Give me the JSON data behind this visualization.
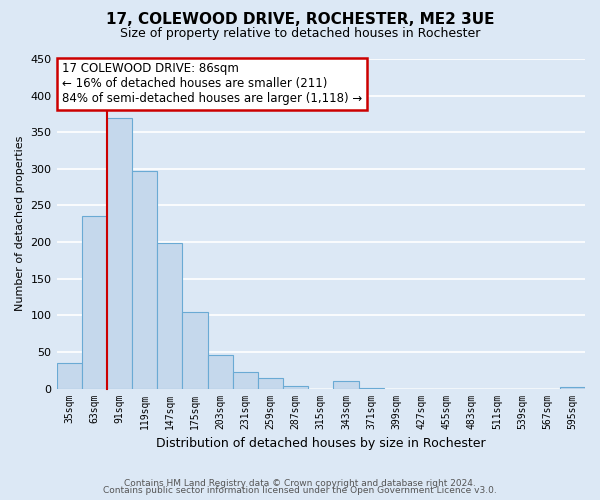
{
  "title": "17, COLEWOOD DRIVE, ROCHESTER, ME2 3UE",
  "subtitle": "Size of property relative to detached houses in Rochester",
  "xlabel": "Distribution of detached houses by size in Rochester",
  "ylabel": "Number of detached properties",
  "bar_color": "#c5d8ec",
  "bar_edge_color": "#6aaad4",
  "bin_labels": [
    "35sqm",
    "63sqm",
    "91sqm",
    "119sqm",
    "147sqm",
    "175sqm",
    "203sqm",
    "231sqm",
    "259sqm",
    "287sqm",
    "315sqm",
    "343sqm",
    "371sqm",
    "399sqm",
    "427sqm",
    "455sqm",
    "483sqm",
    "511sqm",
    "539sqm",
    "567sqm",
    "595sqm"
  ],
  "bar_heights": [
    35,
    235,
    370,
    297,
    199,
    105,
    46,
    22,
    15,
    4,
    0,
    10,
    1,
    0,
    0,
    0,
    0,
    0,
    0,
    0,
    2
  ],
  "ylim": [
    0,
    450
  ],
  "yticks": [
    0,
    50,
    100,
    150,
    200,
    250,
    300,
    350,
    400,
    450
  ],
  "annotation_title": "17 COLEWOOD DRIVE: 86sqm",
  "annotation_line1": "← 16% of detached houses are smaller (211)",
  "annotation_line2": "84% of semi-detached houses are larger (1,118) →",
  "footer1": "Contains HM Land Registry data © Crown copyright and database right 2024.",
  "footer2": "Contains public sector information licensed under the Open Government Licence v3.0.",
  "bg_color": "#dce8f5",
  "plot_bg_color": "#dce8f5",
  "grid_color": "#ffffff",
  "red_line_color": "#cc0000",
  "annotation_box_color": "#ffffff",
  "annotation_box_edge": "#cc0000"
}
